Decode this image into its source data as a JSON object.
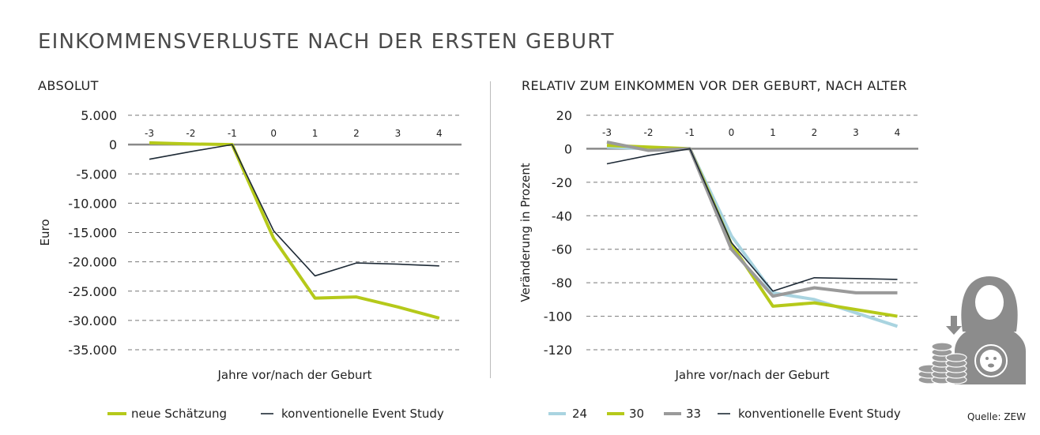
{
  "title": "EINKOMMENSVERLUSTE NACH DER ERSTEN GEBURT",
  "source": "Quelle: ZEW",
  "colors": {
    "green": "#b5c91a",
    "black": "#1e2a36",
    "lightblue": "#a9d4e0",
    "grey": "#9a9a9a",
    "axis": "#8a8a8a"
  },
  "icon": "mother-with-baby-and-coins-icon",
  "chart_data": [
    {
      "type": "line",
      "title": "ABSOLUT",
      "xlabel": "Jahre vor/nach der Geburt",
      "ylabel": "Euro",
      "x": [
        -3,
        -2,
        -1,
        0,
        1,
        2,
        3,
        4
      ],
      "x_tick_labels": [
        "-3",
        "-2",
        "-1",
        "0",
        "1",
        "2",
        "3",
        "4"
      ],
      "y_ticks": [
        5000,
        0,
        -5000,
        -10000,
        -15000,
        -20000,
        -25000,
        -30000,
        -35000
      ],
      "y_tick_labels": [
        "5.000",
        "0",
        "-5.000",
        "-10.000",
        "-15.000",
        "-20.000",
        "-25.000",
        "-30.000",
        "-35.000"
      ],
      "ylim": [
        -35000,
        5000
      ],
      "grid": "dashed horizontal",
      "legend_position": "bottom",
      "series": [
        {
          "name": "neue Schätzung",
          "color": "#b5c91a",
          "width": 4,
          "values": [
            300,
            100,
            0,
            -16000,
            -26200,
            -26000,
            -27700,
            -29600
          ]
        },
        {
          "name": "konventionelle Event Study",
          "color": "#1e2a36",
          "width": 1.6,
          "values": [
            -2500,
            -1200,
            0,
            -14700,
            -22400,
            -20200,
            -20400,
            -20700
          ]
        }
      ]
    },
    {
      "type": "line",
      "title": "RELATIV ZUM EINKOMMEN VOR DER GEBURT, NACH ALTER",
      "xlabel": "Jahre vor/nach der Geburt",
      "ylabel": "Veränderung in Prozent",
      "x": [
        -3,
        -2,
        -1,
        0,
        1,
        2,
        3,
        4
      ],
      "x_tick_labels": [
        "-3",
        "-2",
        "-1",
        "0",
        "1",
        "2",
        "3",
        "4"
      ],
      "y_ticks": [
        20,
        0,
        -20,
        -40,
        -60,
        -80,
        -100,
        -120
      ],
      "y_tick_labels": [
        "20",
        "0",
        "-20",
        "-40",
        "-60",
        "-80",
        "-100",
        "-120"
      ],
      "ylim": [
        -120,
        20
      ],
      "grid": "dashed horizontal",
      "legend_position": "bottom",
      "series": [
        {
          "name": "24",
          "color": "#a9d4e0",
          "width": 4,
          "values": [
            1,
            0,
            0,
            -52,
            -86,
            -90,
            -98,
            -106
          ]
        },
        {
          "name": "30",
          "color": "#b5c91a",
          "width": 4,
          "values": [
            2,
            1,
            0,
            -57,
            -94,
            -92,
            -96,
            -100
          ]
        },
        {
          "name": "33",
          "color": "#9a9a9a",
          "width": 4,
          "values": [
            4,
            -1,
            0,
            -60,
            -88,
            -83,
            -86,
            -86
          ]
        },
        {
          "name": "konventionelle Event Study",
          "color": "#1e2a36",
          "width": 1.6,
          "values": [
            -9,
            -4,
            0,
            -56,
            -85,
            -77,
            -77.5,
            -78
          ]
        }
      ]
    }
  ]
}
